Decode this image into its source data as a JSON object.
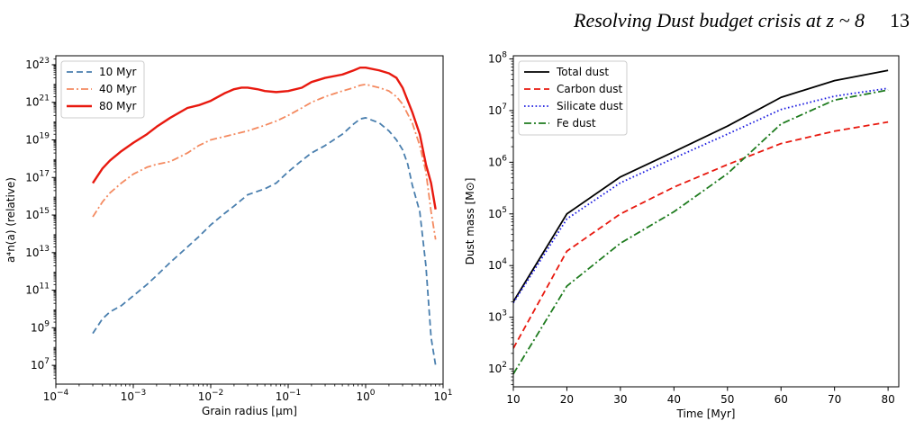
{
  "header": {
    "title": "Resolving Dust budget crisis at z ~ 8",
    "page_number": "13"
  },
  "chart_data": [
    {
      "type": "line",
      "xlabel": "Grain radius [μm]",
      "ylabel": "a⁴n(a) (relative)",
      "xscale": "log",
      "yscale": "log",
      "xlim": [
        0.0001,
        10
      ],
      "ylim": [
        1000000.0,
        3e+23
      ],
      "xticks": [
        {
          "value": 0.0001,
          "base": "10",
          "exp": "−4"
        },
        {
          "value": 0.001,
          "base": "10",
          "exp": "−3"
        },
        {
          "value": 0.01,
          "base": "10",
          "exp": "−2"
        },
        {
          "value": 0.1,
          "base": "10",
          "exp": "−1"
        },
        {
          "value": 1,
          "base": "10",
          "exp": "0"
        },
        {
          "value": 10,
          "base": "10",
          "exp": "1"
        }
      ],
      "yticks": [
        {
          "value": 10000000.0,
          "base": "10",
          "exp": "7"
        },
        {
          "value": 1000000000.0,
          "base": "10",
          "exp": "9"
        },
        {
          "value": 100000000000.0,
          "base": "10",
          "exp": "11"
        },
        {
          "value": 10000000000000.0,
          "base": "10",
          "exp": "13"
        },
        {
          "value": 1000000000000000.0,
          "base": "10",
          "exp": "15"
        },
        {
          "value": 1e+17,
          "base": "10",
          "exp": "17"
        },
        {
          "value": 1e+19,
          "base": "10",
          "exp": "19"
        },
        {
          "value": 1e+21,
          "base": "10",
          "exp": "21"
        },
        {
          "value": 1e+23,
          "base": "10",
          "exp": "23"
        }
      ],
      "legend_position": "top-left",
      "grid": false,
      "series": [
        {
          "name": "10 Myr",
          "color": "#4a7fae",
          "dash": "dashed",
          "width": 1.8,
          "x": [
            0.0003,
            0.0004,
            0.0005,
            0.0007,
            0.001,
            0.0015,
            0.002,
            0.003,
            0.005,
            0.007,
            0.01,
            0.015,
            0.02,
            0.03,
            0.05,
            0.07,
            0.1,
            0.15,
            0.2,
            0.3,
            0.5,
            0.7,
            0.85,
            1.0,
            1.5,
            2.0,
            2.5,
            3.0,
            3.5,
            4.0,
            5.0,
            6.0,
            7.0,
            8.0
          ],
          "y": [
            500000000.0,
            3000000000.0,
            7000000000.0,
            15000000000.0,
            50000000000.0,
            200000000000.0,
            600000000000.0,
            3000000000000.0,
            20000000000000.0,
            70000000000000.0,
            300000000000000.0,
            1200000000000000.0,
            3000000000000000.0,
            1.2e+16,
            2.5e+16,
            5e+16,
            2e+17,
            8e+17,
            2e+18,
            5e+18,
            2e+19,
            7e+19,
            1.3e+20,
            1.5e+20,
            8e+19,
            3e+19,
            1e+19,
            3e+18,
            5e+17,
            4e+16,
            1500000000000000.0,
            2000000000000.0,
            300000000.0,
            10000000.0
          ]
        },
        {
          "name": "40 Myr",
          "color": "#f48a60",
          "dash": "dashdot",
          "width": 1.8,
          "x": [
            0.0003,
            0.0004,
            0.0005,
            0.0007,
            0.001,
            0.0015,
            0.002,
            0.003,
            0.005,
            0.007,
            0.01,
            0.015,
            0.02,
            0.03,
            0.05,
            0.07,
            0.1,
            0.15,
            0.2,
            0.3,
            0.5,
            0.7,
            0.85,
            1.0,
            1.5,
            2.0,
            2.5,
            3.0,
            4.0,
            5.0,
            6.0,
            7.0,
            8.0
          ],
          "y": [
            800000000000000.0,
            5000000000000000.0,
            1.5e+16,
            5e+16,
            1.5e+17,
            3.5e+17,
            5e+17,
            7e+17,
            2e+18,
            5e+18,
            1e+19,
            1.5e+19,
            2e+19,
            3e+19,
            6e+19,
            1e+20,
            2e+20,
            5e+20,
            1e+21,
            2e+21,
            4e+21,
            6e+21,
            8e+21,
            9e+21,
            6e+21,
            4e+21,
            2e+21,
            8e+20,
            8e+19,
            5e+18,
            2e+17,
            1500000000000000.0,
            50000000000000.0
          ]
        },
        {
          "name": "80 Myr",
          "color": "#e8190f",
          "dash": "solid",
          "width": 2.4,
          "x": [
            0.0003,
            0.0004,
            0.0005,
            0.0007,
            0.001,
            0.0015,
            0.002,
            0.003,
            0.005,
            0.007,
            0.01,
            0.015,
            0.02,
            0.025,
            0.03,
            0.04,
            0.05,
            0.07,
            0.1,
            0.15,
            0.2,
            0.3,
            0.5,
            0.7,
            0.85,
            1.0,
            1.5,
            2.0,
            2.5,
            3.0,
            4.0,
            5.0,
            6.0,
            7.0,
            8.0
          ],
          "y": [
            5e+16,
            3e+17,
            8e+17,
            2.5e+18,
            7e+18,
            2e+19,
            5e+19,
            1.5e+20,
            5e+20,
            7e+20,
            1.2e+21,
            3e+21,
            5e+21,
            6e+21,
            6e+21,
            5e+21,
            4e+21,
            3.5e+21,
            4e+21,
            6e+21,
            1.2e+22,
            2e+22,
            3e+22,
            5e+22,
            7e+22,
            7e+22,
            5e+22,
            3.5e+22,
            2e+22,
            6e+21,
            3e+20,
            2e+19,
            5e+17,
            5e+16,
            2000000000000000.0
          ]
        }
      ]
    },
    {
      "type": "line",
      "xlabel": "Time [Myr]",
      "ylabel": "Dust mass [M⊙]",
      "xscale": "linear",
      "yscale": "log",
      "xlim": [
        10,
        82
      ],
      "ylim": [
        45,
        115000000.0
      ],
      "xticks": [
        {
          "value": 10,
          "label": "10"
        },
        {
          "value": 20,
          "label": "20"
        },
        {
          "value": 30,
          "label": "30"
        },
        {
          "value": 40,
          "label": "40"
        },
        {
          "value": 50,
          "label": "50"
        },
        {
          "value": 60,
          "label": "60"
        },
        {
          "value": 70,
          "label": "70"
        },
        {
          "value": 80,
          "label": "80"
        }
      ],
      "yticks": [
        {
          "value": 100,
          "base": "10",
          "exp": "2"
        },
        {
          "value": 1000,
          "base": "10",
          "exp": "3"
        },
        {
          "value": 10000,
          "base": "10",
          "exp": "4"
        },
        {
          "value": 100000,
          "base": "10",
          "exp": "5"
        },
        {
          "value": 1000000,
          "base": "10",
          "exp": "6"
        },
        {
          "value": 10000000,
          "base": "10",
          "exp": "7"
        },
        {
          "value": 100000000,
          "base": "10",
          "exp": "8"
        }
      ],
      "legend_position": "top-left",
      "grid": false,
      "series": [
        {
          "name": "Total dust",
          "color": "#000000",
          "dash": "solid",
          "width": 1.8,
          "x": [
            10,
            20,
            30,
            40,
            50,
            60,
            70,
            80
          ],
          "y": [
            2000,
            100000,
            520000,
            1600000,
            5000000,
            18000000,
            38000000,
            60000000
          ]
        },
        {
          "name": "Carbon dust",
          "color": "#e8190f",
          "dash": "dashed",
          "width": 1.8,
          "x": [
            10,
            20,
            30,
            40,
            50,
            60,
            70,
            80
          ],
          "y": [
            250,
            19000,
            100000,
            330000,
            900000,
            2300000,
            4000000,
            6000000
          ]
        },
        {
          "name": "Silicate dust",
          "color": "#1a1ae0",
          "dash": "dotted",
          "width": 1.8,
          "x": [
            10,
            20,
            30,
            40,
            50,
            60,
            70,
            80
          ],
          "y": [
            1900,
            80000,
            400000,
            1200000,
            3500000,
            10500000,
            19000000,
            27000000
          ]
        },
        {
          "name": "Fe dust",
          "color": "#1e7b1e",
          "dash": "dashdot",
          "width": 1.8,
          "x": [
            10,
            20,
            30,
            40,
            50,
            60,
            70,
            80
          ],
          "y": [
            80,
            4000,
            27000,
            110000,
            600000,
            5500000,
            16000000,
            25000000
          ]
        }
      ]
    }
  ]
}
